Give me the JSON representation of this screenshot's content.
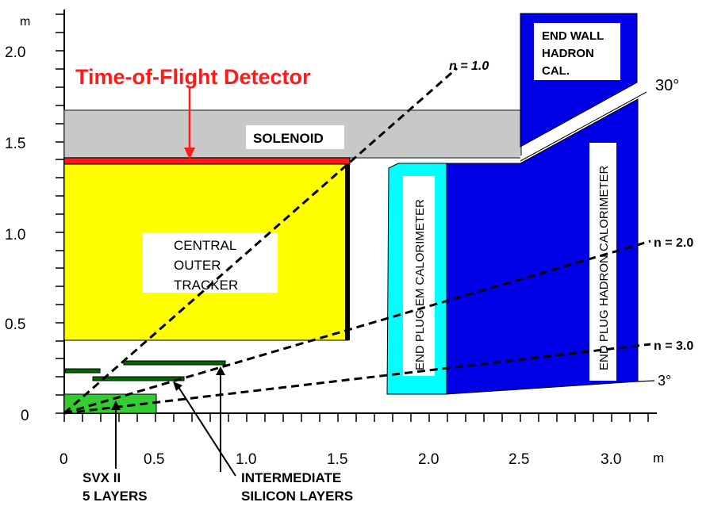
{
  "axis": {
    "y_unit": "m",
    "x_unit": "m",
    "y_ticks": [
      "2.0",
      "1.5",
      "1.0",
      "0.5",
      "0"
    ],
    "x_ticks": [
      "0",
      "0.5",
      "1.0",
      "1.5",
      "2.0",
      "2.5",
      "3.0"
    ]
  },
  "labels": {
    "tof": "Time-of-Flight Detector",
    "solenoid": "SOLENOID",
    "cot": [
      "CENTRAL",
      "OUTER",
      "TRACKER"
    ],
    "end_wall": [
      "END WALL",
      "HADRON",
      "CAL."
    ],
    "plug_em": "END PLUG EM CALORIMETER",
    "plug_had": "END PLUG HADRON CALORIMETER",
    "eta_1": "n = 1.0",
    "eta_2": "n = 2.0",
    "eta_3": "n = 3.0",
    "angle_30": "30°",
    "angle_3": "3°",
    "svx": [
      "SVX II",
      "5 LAYERS"
    ],
    "isl": [
      "INTERMEDIATE",
      "SILICON LAYERS"
    ]
  },
  "colors": {
    "tof": "#ff1a1a",
    "solenoid": "#c8c8c8",
    "cot": "#ffff00",
    "plug_em": "#00ffff",
    "hadron": "#0000e6",
    "silicon": "#33cc33",
    "layers": "#006600"
  }
}
